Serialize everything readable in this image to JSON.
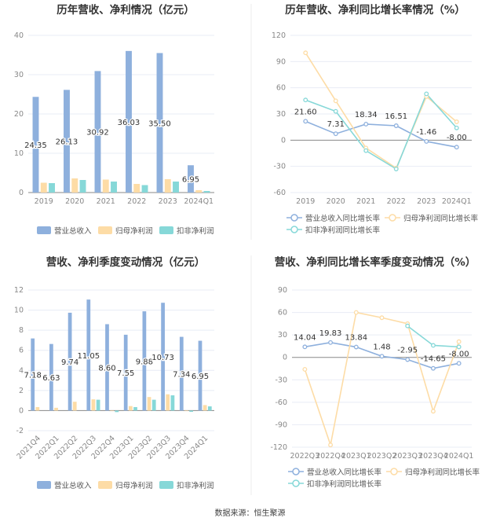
{
  "colors": {
    "revenue": "#8eb0dd",
    "net_profit": "#fddca6",
    "deducted_profit": "#86d8d8",
    "grid": "#e8ecf5",
    "axis": "#888888"
  },
  "footer": "数据来源：恒生聚源",
  "chart_data": [
    {
      "type": "bar",
      "title": "历年营收、净利情况（亿元）",
      "categories": [
        "2019",
        "2020",
        "2021",
        "2022",
        "2023",
        "2024Q1"
      ],
      "ylim": [
        0,
        40
      ],
      "yticks": [
        0,
        10,
        20,
        30,
        40
      ],
      "grid": true,
      "legend": "bottom",
      "series": [
        {
          "name": "营业总收入",
          "values": [
            24.35,
            26.13,
            30.92,
            36.03,
            35.5,
            6.95
          ],
          "labels": [
            "24.35",
            "26.13",
            "30.92",
            "36.03",
            "35.50",
            "6.95"
          ]
        },
        {
          "name": "归母净利润",
          "values": [
            2.5,
            3.6,
            3.3,
            2.2,
            3.4,
            0.6
          ]
        },
        {
          "name": "扣非净利润",
          "values": [
            2.4,
            3.2,
            2.8,
            1.9,
            2.8,
            0.4
          ]
        }
      ]
    },
    {
      "type": "line",
      "title": "历年营收、净利同比增长率情况（%）",
      "categories": [
        "2019",
        "2020",
        "2021",
        "2022",
        "2023",
        "2024Q1"
      ],
      "ylim": [
        -60,
        120
      ],
      "yticks": [
        -60,
        -30,
        0,
        30,
        60,
        90,
        120
      ],
      "grid": true,
      "legend": "bottom",
      "series": [
        {
          "name": "营业总收入同比增长率",
          "values": [
            21.6,
            7.31,
            18.34,
            16.51,
            -1.46,
            -8.0
          ],
          "labels": [
            "21.60",
            "7.31",
            "18.34",
            "16.51",
            "-1.46",
            "-8.00"
          ]
        },
        {
          "name": "归母净利润同比增长率",
          "values": [
            100,
            45,
            -9,
            -32,
            50,
            21
          ]
        },
        {
          "name": "扣非净利润同比增长率",
          "values": [
            46,
            33,
            -12,
            -33,
            53,
            14
          ]
        }
      ]
    },
    {
      "type": "bar",
      "title": "营收、净利季度变动情况（亿元）",
      "categories": [
        "2021Q4",
        "2022Q1",
        "2022Q2",
        "2022Q3",
        "2022Q4",
        "2023Q1",
        "2023Q2",
        "2023Q3",
        "2023Q4",
        "2024Q1"
      ],
      "ylim": [
        -2,
        12
      ],
      "yticks": [
        -2,
        0,
        2,
        4,
        6,
        8,
        10,
        12
      ],
      "grid": true,
      "legend": "bottom",
      "series": [
        {
          "name": "营业总收入",
          "values": [
            7.18,
            6.63,
            9.74,
            11.05,
            8.6,
            7.55,
            9.88,
            10.73,
            7.34,
            6.95
          ],
          "labels": [
            "7.18",
            "6.63",
            "9.74",
            "11.05",
            "8.60",
            "7.55",
            "9.88",
            "10.73",
            "7.34",
            "6.95"
          ]
        },
        {
          "name": "归母净利润",
          "values": [
            0.35,
            0.28,
            0.88,
            1.12,
            -0.05,
            0.45,
            1.35,
            1.62,
            -0.05,
            0.55
          ]
        },
        {
          "name": "扣非净利润",
          "values": [
            null,
            null,
            null,
            1.08,
            -0.15,
            0.35,
            1.08,
            1.52,
            -0.12,
            0.42
          ]
        }
      ]
    },
    {
      "type": "line",
      "title": "营收、净利同比增长率季度变动情况（%）",
      "categories": [
        "2022Q3",
        "2022Q4",
        "2023Q1",
        "2023Q2",
        "2023Q3",
        "2023Q4",
        "2024Q1"
      ],
      "ylim": [
        -120,
        90
      ],
      "yticks": [
        -120,
        -90,
        -60,
        -30,
        0,
        30,
        60,
        90
      ],
      "grid": true,
      "legend": "bottom",
      "series": [
        {
          "name": "营业总收入同比增长率",
          "values": [
            14.04,
            19.83,
            13.84,
            1.48,
            -2.95,
            -14.65,
            -8.0
          ],
          "labels": [
            "14.04",
            "19.83",
            "13.84",
            "1.48",
            "-2.95",
            "-14.65",
            "-8.00"
          ]
        },
        {
          "name": "归母净利润同比增长率",
          "values": [
            -16,
            -117,
            60,
            53,
            45,
            -72,
            21
          ]
        },
        {
          "name": "扣非净利润同比增长率",
          "values": [
            null,
            null,
            null,
            null,
            42,
            16,
            14
          ]
        }
      ]
    }
  ]
}
